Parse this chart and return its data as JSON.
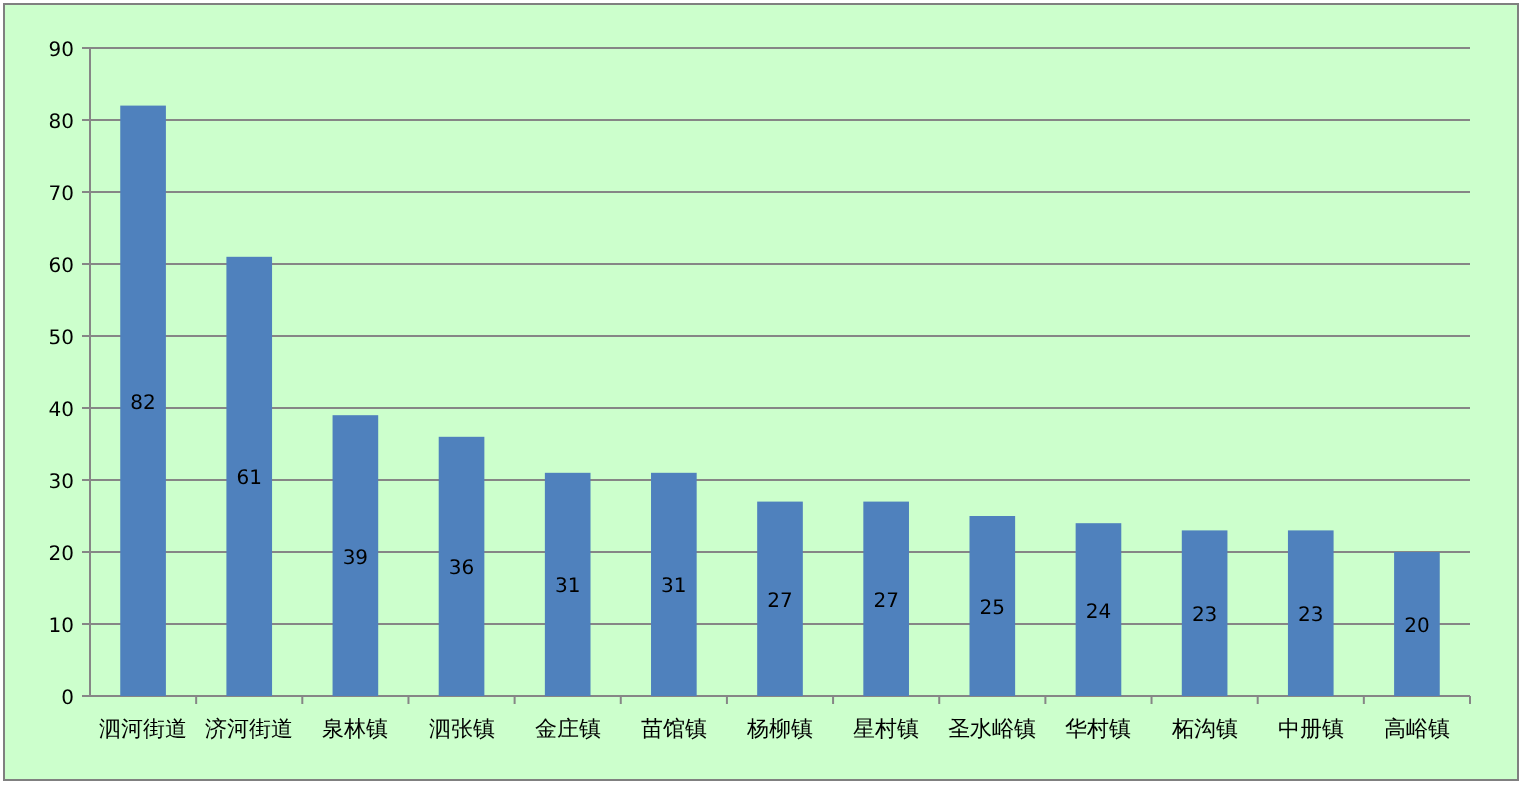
{
  "chart_data": {
    "type": "bar",
    "categories": [
      "泗河街道",
      "济河街道",
      "泉林镇",
      "泗张镇",
      "金庄镇",
      "苗馆镇",
      "杨柳镇",
      "星村镇",
      "圣水峪镇",
      "华村镇",
      "柘沟镇",
      "中册镇",
      "高峪镇"
    ],
    "values": [
      82,
      61,
      39,
      36,
      31,
      31,
      27,
      27,
      25,
      24,
      23,
      23,
      20
    ],
    "color": "#4f81bd",
    "ylim": [
      0,
      90
    ],
    "yticks": [
      0,
      10,
      20,
      30,
      40,
      50,
      60,
      70,
      80,
      90
    ],
    "grid": "y",
    "data_labels": true
  }
}
